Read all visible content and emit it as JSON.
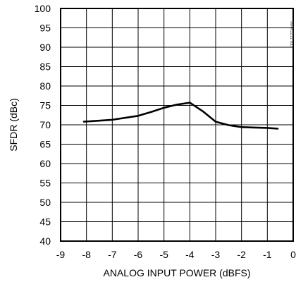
{
  "chart_data": {
    "type": "line",
    "title": "",
    "xlabel": "ANALOG INPUT POWER (dBFS)",
    "ylabel": "SFDR (dBc)",
    "xlim": [
      -9,
      0
    ],
    "ylim": [
      40,
      100
    ],
    "x_ticks": [
      -9,
      -8,
      -7,
      -6,
      -5,
      -4,
      -3,
      -2,
      -1,
      0
    ],
    "y_ticks": [
      40,
      45,
      50,
      55,
      60,
      65,
      70,
      75,
      80,
      85,
      90,
      95,
      100
    ],
    "grid": true,
    "line_color": "#000000",
    "series": [
      {
        "x": [
          -8.1,
          -7.0,
          -6.0,
          -5.5,
          -5.0,
          -4.5,
          -4.0,
          -3.5,
          -3.0,
          -2.5,
          -2.0,
          -1.5,
          -1.0,
          -0.6
        ],
        "y": [
          70.8,
          71.3,
          72.3,
          73.3,
          74.4,
          75.2,
          75.7,
          73.5,
          70.8,
          69.9,
          69.4,
          69.3,
          69.2,
          69.0
        ]
      }
    ]
  },
  "corner_code": "MAX1211 toc"
}
